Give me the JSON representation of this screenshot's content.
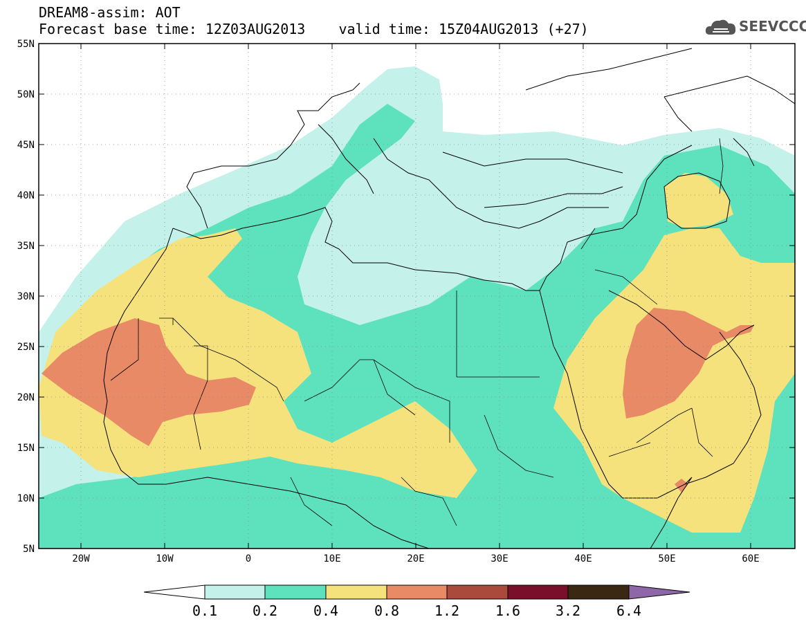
{
  "header": {
    "line1": "DREAM8-assim: AOT",
    "line2_base": "Forecast base time: 12Z03AUG2013",
    "line2_valid": "valid time: 15Z04AUG2013 (+27)"
  },
  "logo": {
    "text": "SEEVCCC",
    "icon": "cloud-icon"
  },
  "map": {
    "lat_labels": [
      "55N",
      "50N",
      "45N",
      "40N",
      "35N",
      "30N",
      "25N",
      "20N",
      "15N",
      "10N",
      "5N"
    ],
    "lon_labels": [
      "20W",
      "10W",
      "0",
      "10E",
      "20E",
      "30E",
      "40E",
      "50E",
      "60E"
    ]
  },
  "colorbar": {
    "labels": [
      "0.1",
      "0.2",
      "0.4",
      "0.8",
      "1.2",
      "1.6",
      "3.2",
      "6.4"
    ],
    "colors": [
      "#ffffff",
      "#c4f1e9",
      "#5de2bd",
      "#f6e27c",
      "#e88a66",
      "#a94a3c",
      "#7a0f2b",
      "#3b2813",
      "#8e67a8"
    ]
  },
  "fields": {
    "c1": "#c4f1e9",
    "c2": "#5de2bd",
    "c3": "#f6e27c",
    "c4": "#e88a66"
  }
}
